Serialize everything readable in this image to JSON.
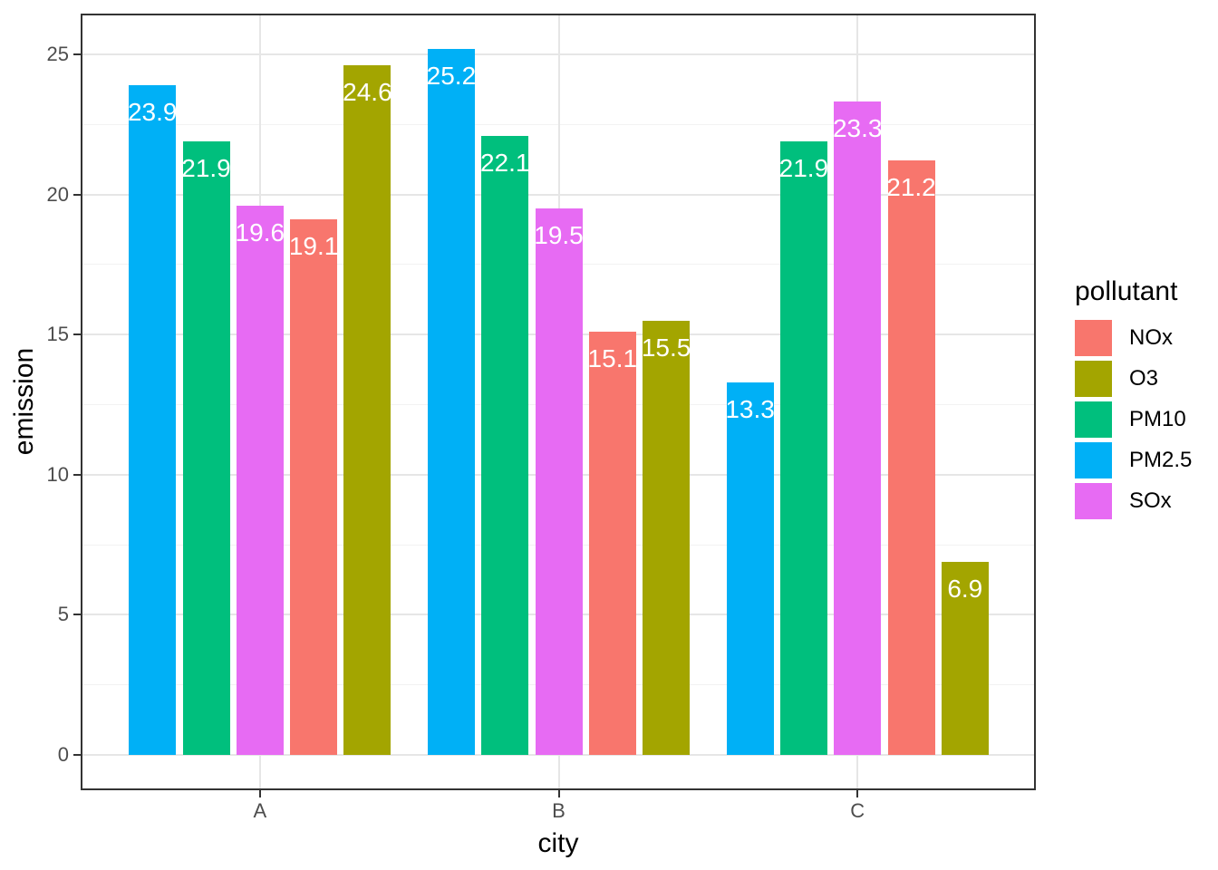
{
  "chart_data": {
    "type": "bar",
    "variant": "grouped-dodged",
    "title": "",
    "xlabel": "city",
    "ylabel": "emission",
    "categories": [
      "A",
      "B",
      "C"
    ],
    "bar_order": [
      "PM2.5",
      "PM10",
      "SOx",
      "NOx",
      "O3"
    ],
    "series": [
      {
        "name": "NOx",
        "color": "#F8766D",
        "values": [
          19.1,
          15.1,
          21.2
        ]
      },
      {
        "name": "O3",
        "color": "#A3A500",
        "values": [
          24.6,
          15.5,
          6.9
        ]
      },
      {
        "name": "PM10",
        "color": "#00BF7D",
        "values": [
          21.9,
          22.1,
          21.9
        ]
      },
      {
        "name": "PM2.5",
        "color": "#00B0F6",
        "values": [
          23.9,
          25.2,
          13.3
        ]
      },
      {
        "name": "SOx",
        "color": "#E76BF3",
        "values": [
          19.6,
          19.5,
          23.3
        ]
      }
    ],
    "bar_value_labels": {
      "A": {
        "PM2.5": "23.9",
        "PM10": "21.9",
        "SOx": "19.6",
        "NOx": "19.1",
        "O3": "24.6"
      },
      "B": {
        "PM2.5": "25.2",
        "PM10": "22.1",
        "SOx": "19.5",
        "NOx": "15.1",
        "O3": "15.5"
      },
      "C": {
        "PM2.5": "13.3",
        "PM10": "21.9",
        "SOx": "23.3",
        "NOx": "21.2",
        "O3": "6.9"
      }
    },
    "y_axis": {
      "ticks": [
        0,
        5,
        10,
        15,
        20,
        25
      ],
      "minor_ticks": [
        2.5,
        7.5,
        12.5,
        17.5,
        22.5
      ],
      "range": [
        -1.3,
        26.5
      ]
    },
    "x_axis": {
      "ticks": [
        "A",
        "B",
        "C"
      ]
    },
    "legend": {
      "title": "pollutant",
      "position": "right",
      "items": [
        {
          "label": "NOx",
          "color": "#F8766D"
        },
        {
          "label": "O3",
          "color": "#A3A500"
        },
        {
          "label": "PM10",
          "color": "#00BF7D"
        },
        {
          "label": "PM2.5",
          "color": "#00B0F6"
        },
        {
          "label": "SOx",
          "color": "#E76BF3"
        }
      ]
    },
    "style": {
      "panel_background": "#FFFFFF",
      "panel_border": "#333333",
      "grid_major": "#E6E6E6",
      "grid_minor": "#F2F2F2",
      "bar_label_color": "#FFFFFF",
      "axis_text_color": "#4D4D4D",
      "axis_title_color": "#000000",
      "grid": "on"
    }
  }
}
